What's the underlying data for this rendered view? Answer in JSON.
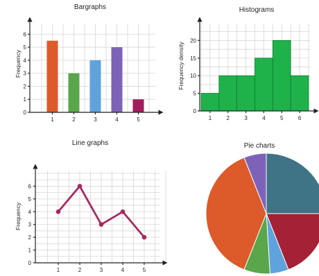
{
  "chart_data": [
    {
      "type": "bar",
      "title": "Bargraphs",
      "xlabel": "",
      "ylabel": "Frequency",
      "categories": [
        "1",
        "2",
        "3",
        "4",
        "5"
      ],
      "values": [
        5.5,
        3,
        4,
        5,
        1
      ],
      "colors": [
        "#dd5a2b",
        "#5aa64a",
        "#5ea3dc",
        "#7d63b8",
        "#a21e5b"
      ],
      "yticks": [
        "0",
        "1",
        "2",
        "3",
        "4",
        "5",
        "6"
      ],
      "ylim": [
        0,
        6.6
      ],
      "grid": true
    },
    {
      "type": "bar",
      "title": "Histograms",
      "xlabel": "",
      "ylabel": "Frequency density",
      "bins": [
        [
          0.5,
          1.5
        ],
        [
          1.5,
          2.5
        ],
        [
          2.5,
          3.5
        ],
        [
          3.5,
          4.5
        ],
        [
          4.5,
          5.5
        ],
        [
          5.5,
          6.5
        ]
      ],
      "values": [
        5,
        10,
        10,
        15,
        20,
        10
      ],
      "color": "#1fb24b",
      "xticks": [
        "1",
        "2",
        "3",
        "4",
        "5",
        "6"
      ],
      "yticks": [
        "0",
        "5",
        "10",
        "15",
        "20"
      ],
      "ylim": [
        0,
        24
      ],
      "grid": true
    },
    {
      "type": "line",
      "title": "Line graphs",
      "xlabel": "",
      "ylabel": "Frequency",
      "x": [
        1,
        2,
        3,
        4,
        5
      ],
      "values": [
        4,
        6,
        3,
        4,
        2
      ],
      "color": "#a6295f",
      "xticks": [
        "1",
        "2",
        "3",
        "4",
        "5"
      ],
      "yticks": [
        "0",
        "1",
        "2",
        "3",
        "4",
        "5",
        "6"
      ],
      "ylim": [
        0,
        7
      ],
      "grid": true
    },
    {
      "type": "pie",
      "title": "Pie charts",
      "slices": [
        {
          "value": 25,
          "color": "#3f7386"
        },
        {
          "value": 19,
          "color": "#a52135"
        },
        {
          "value": 5,
          "color": "#5ea3dc"
        },
        {
          "value": 7,
          "color": "#5aa64a"
        },
        {
          "value": 38,
          "color": "#dd5a2b"
        },
        {
          "value": 6,
          "color": "#7d63b8"
        }
      ]
    }
  ]
}
